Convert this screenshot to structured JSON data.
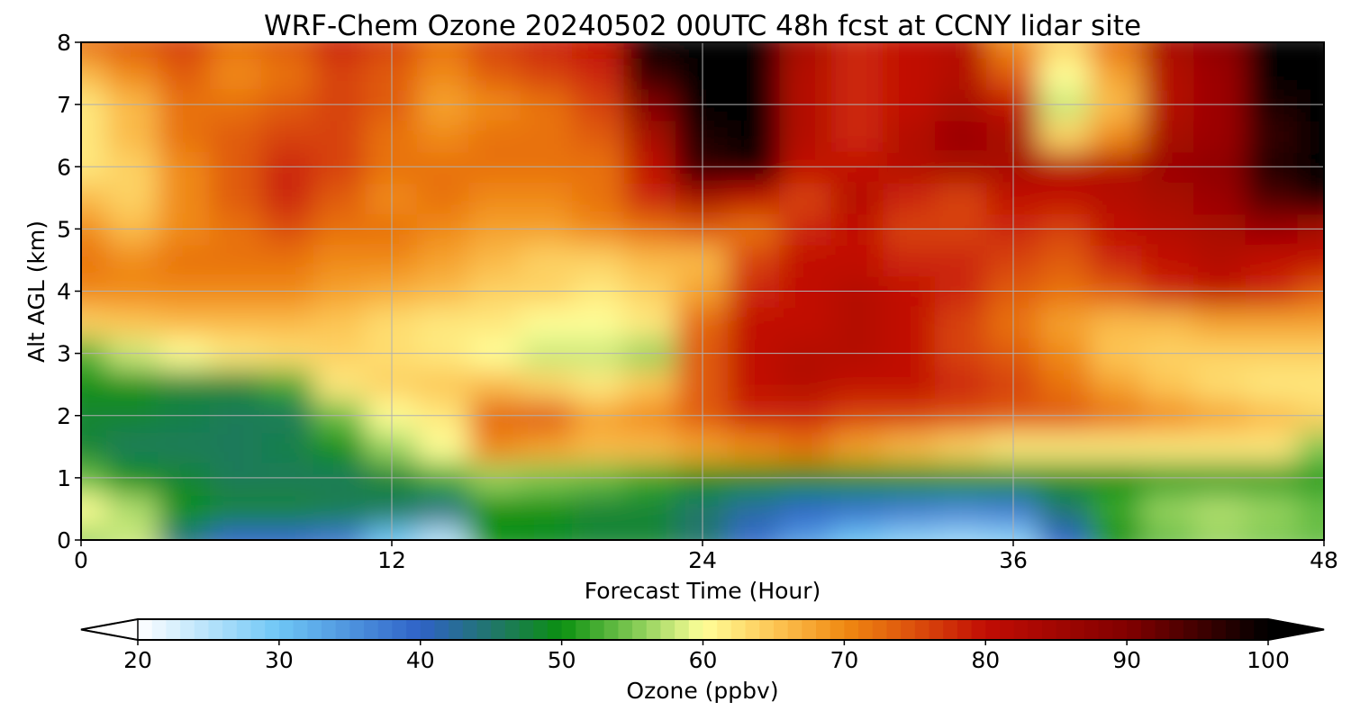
{
  "chart_data": {
    "type": "heatmap",
    "title": "WRF-Chem Ozone  20240502 00UTC 48h fcst at CCNY lidar site",
    "xlabel": "Forecast Time (Hour)",
    "ylabel": "Alt AGL (km)",
    "xlim": [
      0,
      48
    ],
    "ylim": [
      0,
      8
    ],
    "xticks": [
      0,
      12,
      24,
      36,
      48
    ],
    "yticks": [
      0,
      1,
      2,
      3,
      4,
      5,
      6,
      7,
      8
    ],
    "grid": true,
    "x_hours": [
      0,
      2,
      4,
      6,
      8,
      10,
      12,
      14,
      16,
      18,
      20,
      22,
      24,
      26,
      28,
      30,
      32,
      34,
      36,
      38,
      40,
      42,
      44,
      46,
      48
    ],
    "altitudes_km": [
      0,
      0.5,
      1,
      1.5,
      2,
      2.5,
      3,
      3.5,
      4,
      4.5,
      5,
      5.5,
      6,
      6.5,
      7,
      7.5,
      8
    ],
    "values_ppbv": [
      [
        56,
        58,
        44,
        40,
        40,
        38,
        30,
        25,
        50,
        49,
        48,
        48,
        45,
        39,
        34,
        30,
        28,
        27,
        28,
        40,
        50,
        54,
        56,
        55,
        54
      ],
      [
        60,
        57,
        50,
        48,
        48,
        47,
        46,
        44,
        50,
        50,
        48,
        48,
        45,
        42,
        40,
        39,
        38,
        37,
        38,
        45,
        52,
        56,
        57,
        56,
        54
      ],
      [
        54,
        50,
        48,
        46,
        46,
        46,
        48,
        52,
        56,
        55,
        54,
        52,
        50,
        50,
        50,
        50,
        50,
        50,
        50,
        50,
        50,
        51,
        51,
        51,
        51
      ],
      [
        48,
        46,
        46,
        46,
        47,
        50,
        56,
        60,
        70,
        68,
        66,
        66,
        68,
        70,
        72,
        68,
        66,
        64,
        62,
        62,
        62,
        62,
        62,
        62,
        55
      ],
      [
        48,
        48,
        47,
        46,
        46,
        54,
        60,
        62,
        73,
        74,
        68,
        70,
        74,
        78,
        78,
        76,
        76,
        75,
        74,
        74,
        72,
        70,
        68,
        66,
        64
      ],
      [
        50,
        50,
        48,
        48,
        52,
        62,
        64,
        65,
        66,
        64,
        62,
        65,
        74,
        80,
        82,
        80,
        80,
        78,
        76,
        72,
        68,
        65,
        63,
        62,
        62
      ],
      [
        53,
        58,
        60,
        62,
        63,
        64,
        63,
        62,
        60,
        58,
        58,
        56,
        74,
        80,
        82,
        82,
        80,
        76,
        74,
        70,
        65,
        64,
        64,
        64,
        64
      ],
      [
        64,
        65,
        66,
        66,
        66,
        65,
        63,
        62,
        62,
        60,
        60,
        62,
        73,
        80,
        80,
        82,
        80,
        76,
        72,
        68,
        66,
        66,
        68,
        68,
        68
      ],
      [
        70,
        70,
        70,
        70,
        70,
        68,
        67,
        66,
        64,
        64,
        62,
        64,
        68,
        78,
        80,
        82,
        80,
        78,
        74,
        72,
        74,
        78,
        80,
        78,
        74
      ],
      [
        72,
        70,
        72,
        72,
        72,
        70,
        70,
        68,
        66,
        64,
        64,
        66,
        66,
        76,
        80,
        80,
        78,
        78,
        76,
        74,
        78,
        80,
        82,
        80,
        80
      ],
      [
        70,
        66,
        70,
        72,
        75,
        72,
        72,
        70,
        68,
        68,
        70,
        72,
        74,
        72,
        78,
        80,
        76,
        76,
        78,
        76,
        80,
        82,
        84,
        86,
        84
      ],
      [
        66,
        64,
        70,
        74,
        78,
        74,
        70,
        72,
        70,
        70,
        72,
        78,
        84,
        80,
        76,
        82,
        78,
        76,
        80,
        80,
        82,
        84,
        86,
        94,
        98
      ],
      [
        62,
        64,
        70,
        74,
        78,
        76,
        72,
        72,
        72,
        72,
        72,
        80,
        96,
        98,
        80,
        80,
        82,
        84,
        84,
        82,
        82,
        86,
        88,
        98,
        100
      ],
      [
        62,
        66,
        72,
        74,
        76,
        76,
        72,
        70,
        72,
        72,
        74,
        84,
        98,
        100,
        82,
        78,
        82,
        86,
        84,
        64,
        70,
        84,
        86,
        96,
        100
      ],
      [
        62,
        66,
        72,
        72,
        74,
        76,
        74,
        68,
        70,
        72,
        76,
        90,
        100,
        100,
        82,
        78,
        80,
        84,
        80,
        58,
        66,
        82,
        86,
        98,
        100
      ],
      [
        66,
        70,
        74,
        70,
        72,
        76,
        74,
        70,
        74,
        76,
        78,
        96,
        100,
        100,
        82,
        78,
        80,
        82,
        74,
        60,
        68,
        82,
        86,
        100,
        100
      ],
      [
        72,
        74,
        76,
        72,
        74,
        78,
        76,
        72,
        76,
        78,
        80,
        100,
        100,
        100,
        84,
        78,
        80,
        82,
        70,
        64,
        72,
        84,
        88,
        100,
        100
      ]
    ],
    "colorbar": {
      "label": "Ozone  (ppbv)",
      "min": 20,
      "max": 100,
      "ticks": [
        20,
        30,
        40,
        50,
        60,
        70,
        80,
        90,
        100
      ],
      "extend": "both",
      "color_stops": [
        {
          "value": 20,
          "color": "#ffffff"
        },
        {
          "value": 30,
          "color": "#6ec6f5"
        },
        {
          "value": 40,
          "color": "#2f62c7"
        },
        {
          "value": 46,
          "color": "#1d7a5a"
        },
        {
          "value": 50,
          "color": "#0b9010"
        },
        {
          "value": 55,
          "color": "#7dc851"
        },
        {
          "value": 60,
          "color": "#ffff99"
        },
        {
          "value": 65,
          "color": "#fdc655"
        },
        {
          "value": 70,
          "color": "#f08a12"
        },
        {
          "value": 75,
          "color": "#dc4f0c"
        },
        {
          "value": 80,
          "color": "#c10d04"
        },
        {
          "value": 90,
          "color": "#820000"
        },
        {
          "value": 100,
          "color": "#000000"
        }
      ]
    }
  }
}
